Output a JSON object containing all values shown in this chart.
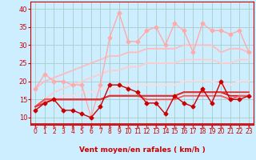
{
  "xlabel": "Vent moyen/en rafales ( km/h )",
  "bg_color": "#cceeff",
  "grid_color": "#aacccc",
  "xlim": [
    -0.5,
    23.5
  ],
  "ylim": [
    8,
    42
  ],
  "yticks": [
    10,
    15,
    20,
    25,
    30,
    35,
    40
  ],
  "xticks": [
    0,
    1,
    2,
    3,
    4,
    5,
    6,
    7,
    8,
    9,
    10,
    11,
    12,
    13,
    14,
    15,
    16,
    17,
    18,
    19,
    20,
    21,
    22,
    23
  ],
  "series": [
    {
      "x": [
        0,
        1,
        2,
        3,
        4,
        5,
        6,
        7,
        8,
        9,
        10,
        11,
        12,
        13,
        14,
        15,
        16,
        17,
        18,
        19,
        20,
        21,
        22,
        23
      ],
      "y": [
        18,
        22,
        20,
        20,
        19,
        19,
        10,
        19,
        32,
        39,
        31,
        31,
        34,
        35,
        30,
        36,
        34,
        28,
        36,
        34,
        34,
        33,
        34,
        28
      ],
      "color": "#ffaaaa",
      "lw": 1.0,
      "marker": "D",
      "ms": 2.5,
      "linestyle": "-",
      "zorder": 3
    },
    {
      "x": [
        0,
        1,
        2,
        3,
        4,
        5,
        6,
        7,
        8,
        9,
        10,
        11,
        12,
        13,
        14,
        15,
        16,
        17,
        18,
        19,
        20,
        21,
        22,
        23
      ],
      "y": [
        18,
        20,
        21,
        22,
        23,
        24,
        25,
        26,
        27,
        27,
        28,
        28,
        29,
        29,
        29,
        29,
        30,
        30,
        30,
        30,
        28,
        29,
        29,
        28
      ],
      "color": "#ffbbbb",
      "lw": 1.3,
      "marker": null,
      "ms": 0,
      "linestyle": "-",
      "zorder": 2
    },
    {
      "x": [
        0,
        1,
        2,
        3,
        4,
        5,
        6,
        7,
        8,
        9,
        10,
        11,
        12,
        13,
        14,
        15,
        16,
        17,
        18,
        19,
        20,
        21,
        22,
        23
      ],
      "y": [
        13,
        15,
        17,
        18,
        19,
        20,
        21,
        22,
        23,
        23,
        24,
        24,
        25,
        25,
        25,
        25,
        26,
        26,
        26,
        26,
        25,
        25,
        26,
        26
      ],
      "color": "#ffcccc",
      "lw": 1.3,
      "marker": null,
      "ms": 0,
      "linestyle": "-",
      "zorder": 2
    },
    {
      "x": [
        0,
        1,
        2,
        3,
        4,
        5,
        6,
        7,
        8,
        9,
        10,
        11,
        12,
        13,
        14,
        15,
        16,
        17,
        18,
        19,
        20,
        21,
        22,
        23
      ],
      "y": [
        13,
        14,
        15,
        16,
        16,
        17,
        17,
        18,
        18,
        18,
        19,
        19,
        19,
        19,
        19,
        19,
        20,
        20,
        20,
        20,
        19,
        19,
        20,
        20
      ],
      "color": "#ffdddd",
      "lw": 1.3,
      "marker": null,
      "ms": 0,
      "linestyle": "-",
      "zorder": 2
    },
    {
      "x": [
        0,
        1,
        2,
        3,
        4,
        5,
        6,
        7,
        8,
        9,
        10,
        11,
        12,
        13,
        14,
        15,
        16,
        17,
        18,
        19,
        20,
        21,
        22,
        23
      ],
      "y": [
        12,
        14,
        15,
        12,
        12,
        11,
        10,
        13,
        19,
        19,
        18,
        17,
        14,
        14,
        11,
        16,
        14,
        13,
        18,
        14,
        20,
        15,
        15,
        16
      ],
      "color": "#cc0000",
      "lw": 1.0,
      "marker": "D",
      "ms": 2.5,
      "linestyle": "-",
      "zorder": 4
    },
    {
      "x": [
        0,
        1,
        2,
        3,
        4,
        5,
        6,
        7,
        8,
        9,
        10,
        11,
        12,
        13,
        14,
        15,
        16,
        17,
        18,
        19,
        20,
        21,
        22,
        23
      ],
      "y": [
        13,
        15,
        15,
        15,
        15,
        15,
        15,
        15,
        16,
        16,
        16,
        16,
        16,
        16,
        16,
        16,
        17,
        17,
        17,
        17,
        17,
        16,
        16,
        16
      ],
      "color": "#ee1111",
      "lw": 1.3,
      "marker": null,
      "ms": 0,
      "linestyle": "-",
      "zorder": 3
    },
    {
      "x": [
        0,
        1,
        2,
        3,
        4,
        5,
        6,
        7,
        8,
        9,
        10,
        11,
        12,
        13,
        14,
        15,
        16,
        17,
        18,
        19,
        20,
        21,
        22,
        23
      ],
      "y": [
        13,
        15,
        15,
        15,
        15,
        15,
        15,
        15,
        16,
        16,
        16,
        16,
        15,
        15,
        15,
        15,
        16,
        16,
        16,
        16,
        16,
        15,
        16,
        16
      ],
      "color": "#ff5555",
      "lw": 1.3,
      "marker": null,
      "ms": 0,
      "linestyle": "-",
      "zorder": 3
    },
    {
      "x": [
        0,
        1,
        2,
        3,
        4,
        5,
        6,
        7,
        8,
        9,
        10,
        11,
        12,
        13,
        14,
        15,
        16,
        17,
        18,
        19,
        20,
        21,
        22,
        23
      ],
      "y": [
        13,
        14,
        15,
        15,
        15,
        15,
        15,
        15,
        16,
        16,
        16,
        16,
        16,
        16,
        16,
        16,
        17,
        17,
        17,
        17,
        17,
        17,
        17,
        17
      ],
      "color": "#dd3333",
      "lw": 1.3,
      "marker": null,
      "ms": 0,
      "linestyle": "-",
      "zorder": 3
    }
  ],
  "axis_label_color": "#cc0000",
  "tick_color": "#cc0000",
  "spine_color": "#cc0000",
  "hline_color": "#cc0000",
  "arrow_color": "#dd4444"
}
